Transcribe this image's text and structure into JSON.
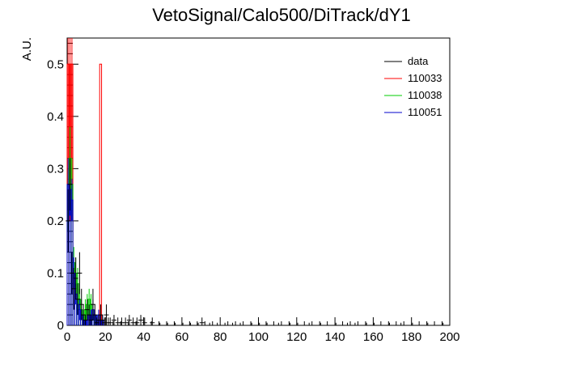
{
  "chart_data": {
    "type": "histogram",
    "title": "VetoSignal/Calo500/DiTrack/dY1",
    "xlabel": "",
    "ylabel": "A.U.",
    "xlim": [
      0,
      200
    ],
    "ylim": [
      0,
      0.55
    ],
    "x_ticks": [
      0,
      20,
      40,
      60,
      80,
      100,
      120,
      140,
      160,
      180,
      200
    ],
    "y_ticks": [
      0,
      0.1,
      0.2,
      0.3,
      0.4,
      0.5
    ],
    "y_tick_labels": [
      "0",
      "0.1",
      "0.2",
      "0.3",
      "0.4",
      "0.5"
    ],
    "grid": false,
    "legend_position": "top-right",
    "bin_width": 1,
    "series": [
      {
        "name": "data",
        "color": "#000000",
        "style": "points-with-errors",
        "bins": [
          0,
          1,
          2,
          3,
          4,
          5,
          6,
          7,
          8,
          9,
          10,
          11,
          12,
          13,
          14,
          15,
          16,
          17,
          18,
          19,
          20,
          21,
          22,
          24,
          26,
          28,
          30,
          32,
          34,
          36,
          38,
          40,
          44,
          48,
          52,
          56,
          60,
          64,
          68,
          70,
          74,
          78,
          82,
          86,
          90,
          96,
          100,
          104,
          110,
          116,
          120,
          126,
          132,
          140,
          146,
          150,
          156,
          160,
          168,
          174,
          180,
          188,
          196
        ],
        "values": [
          0.2,
          0.27,
          0.1,
          0.07,
          0.09,
          0.05,
          0.1,
          0.04,
          0.02,
          0.01,
          0.03,
          0.02,
          0.01,
          0.04,
          0.02,
          0.005,
          0.01,
          0.02,
          0.01,
          0.005,
          0.02,
          0.005,
          0.005,
          0.01,
          0.005,
          0.005,
          0.005,
          0.01,
          0.005,
          0.005,
          0.01,
          0.005,
          0.005,
          0,
          0,
          0,
          0,
          0,
          0,
          0.005,
          0,
          0,
          0,
          0,
          0,
          0,
          0,
          0,
          0,
          0,
          0,
          0,
          0,
          0,
          0,
          0,
          0,
          0,
          0,
          0,
          0,
          0,
          0
        ],
        "errors": [
          0.06,
          0.05,
          0.04,
          0.04,
          0.04,
          0.03,
          0.04,
          0.03,
          0.02,
          0.01,
          0.02,
          0.02,
          0.01,
          0.03,
          0.02,
          0.01,
          0.01,
          0.02,
          0.01,
          0.01,
          0.02,
          0.01,
          0.01,
          0.01,
          0.01,
          0.01,
          0.01,
          0.01,
          0.01,
          0.01,
          0.01,
          0.01,
          0.01,
          0.005,
          0.005,
          0.005,
          0.005,
          0.005,
          0.005,
          0.01,
          0.005,
          0.005,
          0.005,
          0.005,
          0.005,
          0.005,
          0.005,
          0.005,
          0.005,
          0.005,
          0.005,
          0.005,
          0.005,
          0.005,
          0.005,
          0.005,
          0.005,
          0.005,
          0.005,
          0.005,
          0.005,
          0.005,
          0.005
        ]
      },
      {
        "name": "110033",
        "color": "#ff0000",
        "style": "hist",
        "bins": [
          0,
          1,
          2,
          3,
          17
        ],
        "values": [
          0.5,
          0.5,
          0.5,
          0,
          0.5
        ],
        "errors": [
          0.3,
          0.3,
          0.3,
          0,
          0
        ]
      },
      {
        "name": "110038",
        "color": "#00cc00",
        "style": "hist",
        "bins": [
          0,
          1,
          2,
          3,
          4,
          5,
          6,
          7,
          8,
          9,
          10,
          11,
          12,
          13,
          14,
          15
        ],
        "values": [
          0.24,
          0.32,
          0.27,
          0.12,
          0.1,
          0.08,
          0.05,
          0.03,
          0.02,
          0.03,
          0.04,
          0.05,
          0.04,
          0.02,
          0.01,
          0.01
        ],
        "errors": [
          0.06,
          0.06,
          0.05,
          0.03,
          0.03,
          0.03,
          0.02,
          0.02,
          0.01,
          0.02,
          0.02,
          0.02,
          0.02,
          0.01,
          0.01,
          0.01
        ]
      },
      {
        "name": "110051",
        "color": "#0000cc",
        "style": "hist",
        "bins": [
          0,
          1,
          2,
          3,
          4,
          5,
          6,
          7,
          8,
          9,
          10,
          11,
          12,
          13,
          14,
          15,
          16,
          17,
          18
        ],
        "values": [
          0.27,
          0.26,
          0.24,
          0.1,
          0.06,
          0.04,
          0.03,
          0.02,
          0.01,
          0.01,
          0.01,
          0.02,
          0.02,
          0.03,
          0.02,
          0.01,
          0.02,
          0.01,
          0.01
        ],
        "errors": [
          0.05,
          0.05,
          0.04,
          0.03,
          0.02,
          0.02,
          0.02,
          0.01,
          0.01,
          0.01,
          0.01,
          0.01,
          0.01,
          0.02,
          0.01,
          0.01,
          0.01,
          0.01,
          0.01
        ]
      }
    ]
  }
}
